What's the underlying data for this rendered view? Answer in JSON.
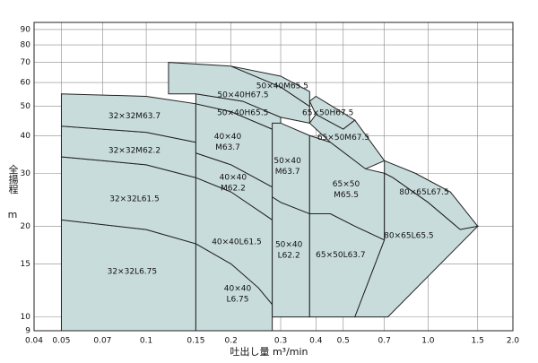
{
  "chart_data": {
    "type": "region",
    "x_label": "吐出し量 m³/min",
    "y_label": "全揚程",
    "y_unit": "m",
    "x_log": true,
    "y_log": true,
    "grid": true,
    "fill": "#c9dcdc",
    "stroke": "#222222",
    "xlim": [
      0.04,
      2.0
    ],
    "xticks": [
      0.04,
      0.05,
      0.07,
      0.1,
      0.15,
      0.2,
      0.3,
      0.4,
      0.5,
      0.7,
      {
        "value": 1,
        "label": "1.0"
      },
      1.5,
      {
        "value": 2,
        "label": "2.0"
      }
    ],
    "ylim": [
      9,
      95
    ],
    "yticks": [
      9,
      10,
      15,
      20,
      30,
      40,
      50,
      60,
      70,
      80,
      90
    ],
    "regions": [
      {
        "label": "32×32L6.75",
        "x": [
          0.05,
          0.05,
          0.1,
          0.15,
          0.15
        ],
        "y": [
          9,
          21,
          19.5,
          17.5,
          9
        ]
      },
      {
        "label": "32×32L61.5",
        "x": [
          0.05,
          0.05,
          0.1,
          0.15,
          0.15,
          0.1
        ],
        "y": [
          21,
          34,
          32,
          29,
          17.5,
          19.5
        ]
      },
      {
        "label": "32×32M62.2",
        "x": [
          0.05,
          0.05,
          0.1,
          0.15,
          0.15,
          0.1
        ],
        "y": [
          34,
          43,
          41,
          38,
          29,
          32
        ]
      },
      {
        "label": "32×32M63.7",
        "x": [
          0.05,
          0.05,
          0.1,
          0.15,
          0.15,
          0.1
        ],
        "y": [
          43,
          55,
          54,
          51,
          38,
          41
        ]
      },
      {
        "label": "40×40 L6.75",
        "x": [
          0.15,
          0.15,
          0.2,
          0.25,
          0.28,
          0.28
        ],
        "y": [
          9,
          17.5,
          15,
          12.5,
          11,
          9
        ]
      },
      {
        "label": "40×40L61.5",
        "x": [
          0.15,
          0.15,
          0.2,
          0.28,
          0.28,
          0.25,
          0.2
        ],
        "y": [
          17.5,
          29,
          26,
          21,
          11,
          12.5,
          15
        ]
      },
      {
        "label": "40×40 M62.2",
        "x": [
          0.15,
          0.15,
          0.2,
          0.28,
          0.28,
          0.2
        ],
        "y": [
          29,
          35,
          32,
          27,
          21,
          26
        ]
      },
      {
        "label": "40×40 M63.7",
        "x": [
          0.15,
          0.15,
          0.2,
          0.28,
          0.28,
          0.2,
          0.15
        ],
        "y": [
          38,
          51,
          48,
          42,
          27,
          32,
          35
        ]
      },
      {
        "label": "50×40H65.5",
        "x": [
          0.15,
          0.15,
          0.22,
          0.3,
          0.3,
          0.28,
          0.2
        ],
        "y": [
          51,
          55,
          52,
          46,
          42,
          42,
          48
        ]
      },
      {
        "label": "50×40H67.5",
        "x": [
          0.12,
          0.12,
          0.2,
          0.3,
          0.38,
          0.38,
          0.3,
          0.22,
          0.15
        ],
        "y": [
          55,
          70,
          68,
          58,
          50,
          44,
          46,
          52,
          55
        ]
      },
      {
        "label": "50×40M65.5",
        "x": [
          0.2,
          0.3,
          0.38,
          0.38,
          0.3
        ],
        "y": [
          68,
          63,
          56,
          50,
          58
        ]
      },
      {
        "label": "50×40 M63.7",
        "x": [
          0.28,
          0.3,
          0.38,
          0.38,
          0.3,
          0.28
        ],
        "y": [
          44,
          44,
          40,
          22,
          24,
          25
        ]
      },
      {
        "label": "50×40 L62.2",
        "x": [
          0.28,
          0.3,
          0.38,
          0.38,
          0.28
        ],
        "y": [
          25,
          24,
          22,
          10,
          10
        ]
      },
      {
        "label": "65×50H67.5",
        "x": [
          0.38,
          0.4,
          0.55,
          0.5,
          0.4
        ],
        "y": [
          52,
          54,
          45,
          42,
          47
        ]
      },
      {
        "label": "65×50M67.5",
        "x": [
          0.38,
          0.4,
          0.5,
          0.55,
          0.7,
          0.6,
          0.45
        ],
        "y": [
          44,
          47,
          42,
          45,
          33,
          31,
          38
        ]
      },
      {
        "label": "65×50 M65.5",
        "x": [
          0.38,
          0.45,
          0.6,
          0.7,
          0.7,
          0.55,
          0.45,
          0.38
        ],
        "y": [
          40,
          38,
          31,
          30,
          18,
          20,
          22,
          22
        ]
      },
      {
        "label": "65×50L63.7",
        "x": [
          0.38,
          0.45,
          0.55,
          0.7,
          0.55,
          0.38
        ],
        "y": [
          22,
          22,
          20,
          18,
          10,
          10
        ]
      },
      {
        "label": "80×65L67.5",
        "x": [
          0.7,
          0.9,
          1.2,
          1.5,
          1.3,
          1.0,
          0.75,
          0.7
        ],
        "y": [
          33,
          30,
          26,
          20,
          19.5,
          24,
          29,
          30
        ]
      },
      {
        "label": "80×65L65.5",
        "x": [
          0.7,
          0.7,
          0.75,
          1.0,
          1.3,
          1.5,
          0.72,
          0.55
        ],
        "y": [
          18,
          30,
          29,
          24,
          19.5,
          20,
          10,
          10
        ]
      }
    ]
  }
}
